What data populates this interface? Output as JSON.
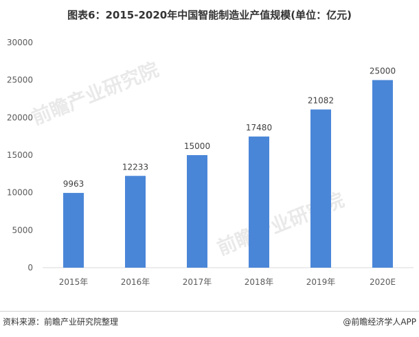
{
  "title": "图表6：2015-2020年中国智能制造业产值规模(单位：亿元)",
  "chart_data": {
    "type": "bar",
    "categories": [
      "2015年",
      "2016年",
      "2017年",
      "2018年",
      "2019年",
      "2020E"
    ],
    "values": [
      9963,
      12233,
      15000,
      17480,
      21082,
      25000
    ],
    "ylim": [
      0,
      30000
    ],
    "yticks": [
      0,
      5000,
      10000,
      15000,
      20000,
      25000,
      30000
    ],
    "bar_color": "#4a86d8",
    "grid": false
  },
  "watermarks": [
    "前瞻产业研究院",
    "前瞻产业研究院"
  ],
  "footer": {
    "source": "资料来源：前瞻产业研究院整理",
    "credit": "@前瞻经济学人APP"
  }
}
